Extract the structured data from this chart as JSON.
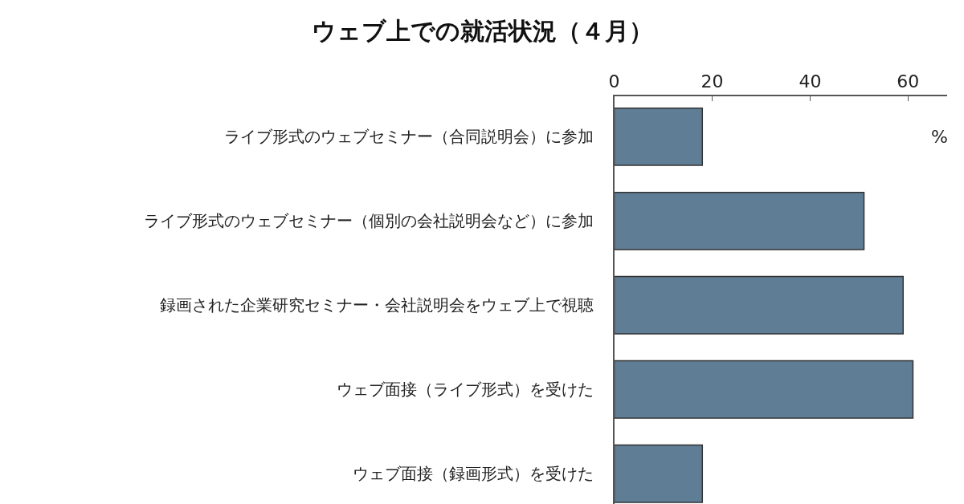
{
  "chart_data": {
    "type": "bar",
    "orientation": "horizontal",
    "title": "ウェブ上での就活状況（４月）",
    "categories": [
      "ライブ形式のウェブセミナー（合同説明会）に参加",
      "ライブ形式のウェブセミナー（個別の会社説明会など）に参加",
      "録画された企業研究セミナー・会社説明会をウェブ上で視聴",
      "ウェブ面接（ライブ形式）を受けた",
      "ウェブ面接（録画形式）を受けた"
    ],
    "values": [
      18,
      51,
      59,
      61,
      18
    ],
    "color": "#5f7d95",
    "xlim": [
      0,
      68
    ],
    "xticks": [
      0,
      20,
      40,
      60
    ],
    "annotations": [
      "%"
    ],
    "legend": false
  }
}
